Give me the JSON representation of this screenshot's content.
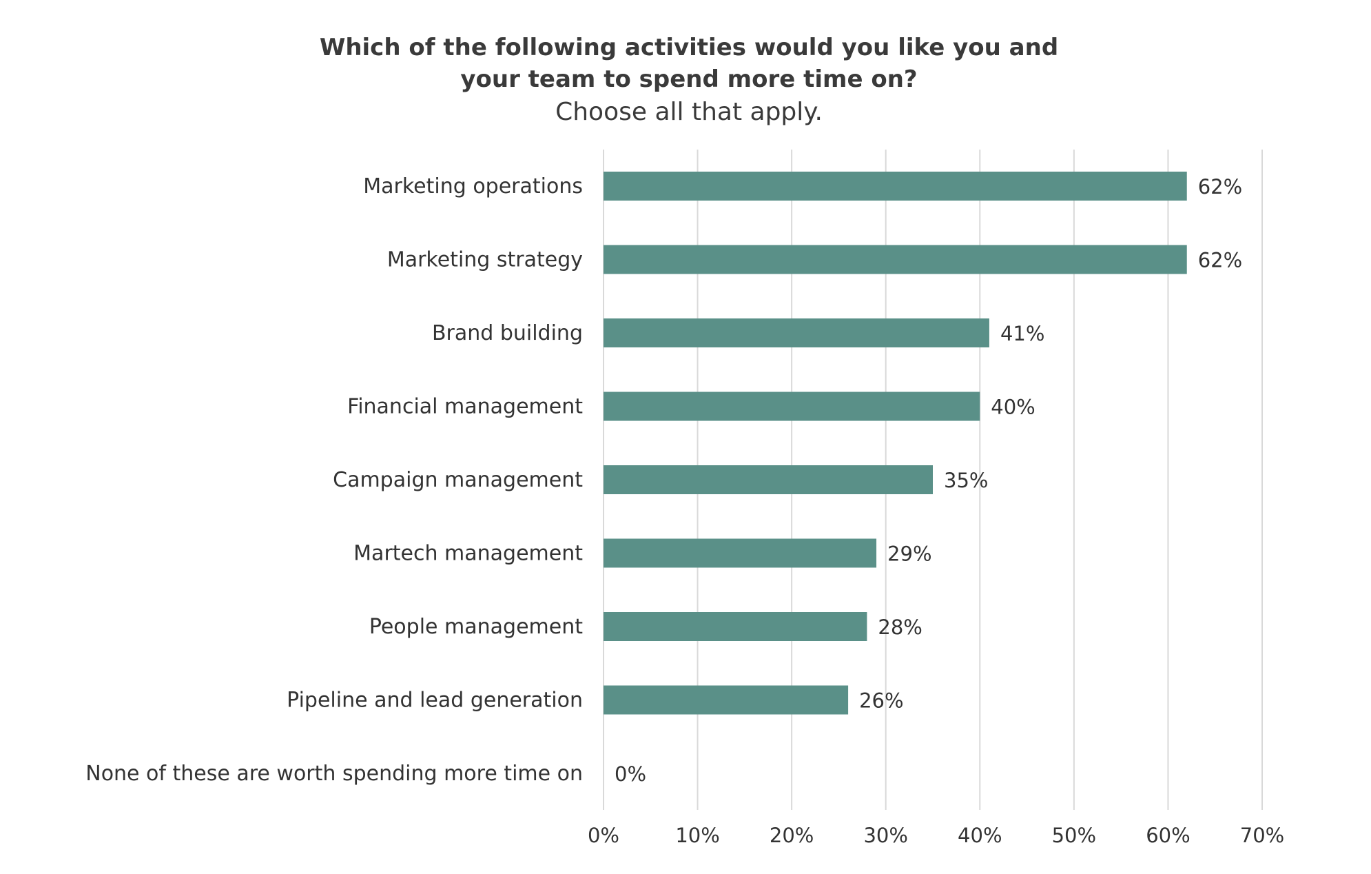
{
  "chart_data": {
    "type": "bar",
    "orientation": "horizontal",
    "title_lines": [
      "Which of the following activities would you like you and",
      "your team to spend more time on?"
    ],
    "subtitle": "Choose all that apply.",
    "categories": [
      "Marketing operations",
      "Marketing strategy",
      "Brand building",
      "Financial management",
      "Campaign management",
      "Martech management",
      "People management",
      "Pipeline and lead generation",
      "None of these are worth spending more time on"
    ],
    "values": [
      62,
      62,
      41,
      40,
      35,
      29,
      28,
      26,
      0
    ],
    "value_labels": [
      "62%",
      "62%",
      "41%",
      "40%",
      "35%",
      "29%",
      "28%",
      "26%",
      "0%"
    ],
    "xlim": [
      0,
      70
    ],
    "xticks": [
      0,
      10,
      20,
      30,
      40,
      50,
      60,
      70
    ],
    "xtick_labels": [
      "0%",
      "10%",
      "20%",
      "30%",
      "40%",
      "50%",
      "60%",
      "70%"
    ],
    "grid": "vertical",
    "legend": "none",
    "bar_color": "#5a9088"
  }
}
